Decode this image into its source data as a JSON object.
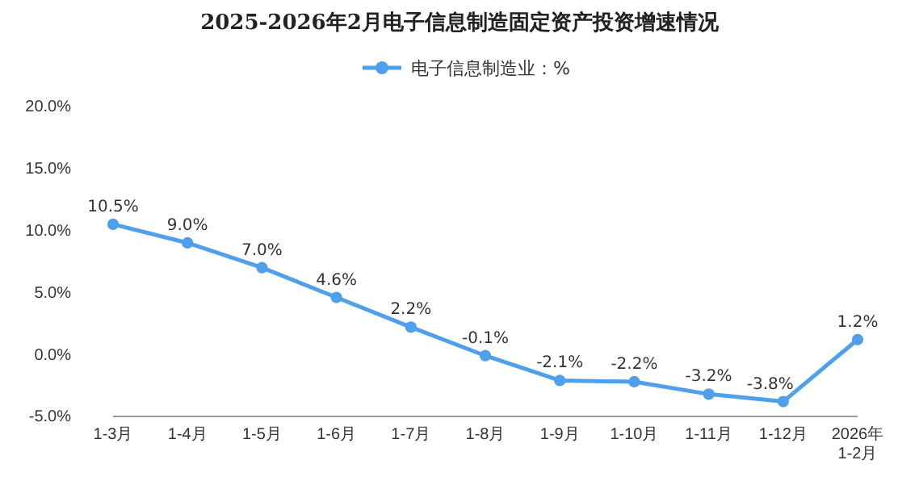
{
  "chart_data": {
    "type": "line",
    "title": "2025-2026年2月电子信息制造固定资产投资增速情况",
    "categories": [
      "1-3月",
      "1-4月",
      "1-5月",
      "1-6月",
      "1-7月",
      "1-8月",
      "1-9月",
      "1-10月",
      "1-11月",
      "1-12月",
      "2026年\n1-2月"
    ],
    "series": [
      {
        "name": "电子信息制造业：%",
        "color": "#4f9fec",
        "values": [
          10.5,
          9.0,
          7.0,
          4.6,
          2.2,
          -0.1,
          -2.1,
          -2.2,
          -3.2,
          -3.8,
          1.2
        ],
        "value_labels": [
          "10.5%",
          "9.0%",
          "7.0%",
          "4.6%",
          "2.2%",
          "-0.1%",
          "-2.1%",
          "-2.2%",
          "-3.2%",
          "-3.8%",
          "1.2%"
        ]
      }
    ],
    "ylim": [
      -5,
      20
    ],
    "yticks": [
      {
        "value": -5,
        "label": "-5.0%"
      },
      {
        "value": 0,
        "label": "0.0%"
      },
      {
        "value": 5,
        "label": "5.0%"
      },
      {
        "value": 10,
        "label": "10.0%"
      },
      {
        "value": 15,
        "label": "15.0%"
      },
      {
        "value": 20,
        "label": "20.0%"
      }
    ],
    "legend": "top",
    "marker": "circle",
    "line_style": "solid"
  }
}
